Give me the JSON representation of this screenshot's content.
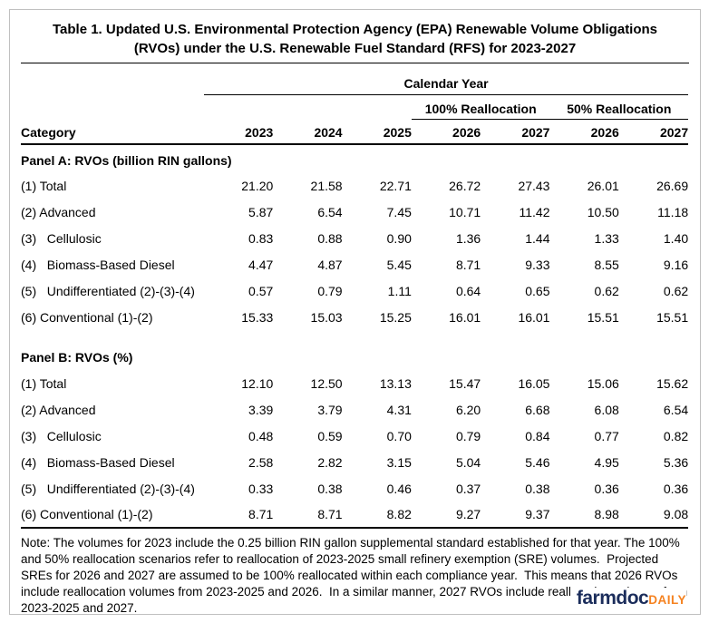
{
  "title": "Table 1. Updated U.S. Environmental Protection Agency (EPA) Renewable Volume Obligations (RVOs) under the U.S. Renewable Fuel Standard (RFS) for 2023-2027",
  "header": {
    "calendar_year": "Calendar Year",
    "realloc_100": "100% Reallocation",
    "realloc_50": "50% Reallocation",
    "category": "Category",
    "years": [
      "2023",
      "2024",
      "2025",
      "2026",
      "2027",
      "2026",
      "2027"
    ]
  },
  "panels": [
    {
      "title": "Panel A: RVOs (billion RIN gallons)",
      "rows": [
        {
          "label": "(1) Total",
          "values": [
            "21.20",
            "21.58",
            "22.71",
            "26.72",
            "27.43",
            "26.01",
            "26.69"
          ]
        },
        {
          "label": "(2) Advanced",
          "values": [
            "5.87",
            "6.54",
            "7.45",
            "10.71",
            "11.42",
            "10.50",
            "11.18"
          ]
        },
        {
          "label": "(3)   Cellulosic",
          "values": [
            "0.83",
            "0.88",
            "0.90",
            "1.36",
            "1.44",
            "1.33",
            "1.40"
          ]
        },
        {
          "label": "(4)   Biomass-Based Diesel",
          "values": [
            "4.47",
            "4.87",
            "5.45",
            "8.71",
            "9.33",
            "8.55",
            "9.16"
          ]
        },
        {
          "label": "(5)   Undifferentiated (2)-(3)-(4)",
          "values": [
            "0.57",
            "0.79",
            "1.11",
            "0.64",
            "0.65",
            "0.62",
            "0.62"
          ]
        },
        {
          "label": "(6) Conventional (1)-(2)",
          "values": [
            "15.33",
            "15.03",
            "15.25",
            "16.01",
            "16.01",
            "15.51",
            "15.51"
          ]
        }
      ]
    },
    {
      "title": "Panel B: RVOs (%)",
      "rows": [
        {
          "label": "(1) Total",
          "values": [
            "12.10",
            "12.50",
            "13.13",
            "15.47",
            "16.05",
            "15.06",
            "15.62"
          ]
        },
        {
          "label": "(2) Advanced",
          "values": [
            "3.39",
            "3.79",
            "4.31",
            "6.20",
            "6.68",
            "6.08",
            "6.54"
          ]
        },
        {
          "label": "(3)   Cellulosic",
          "values": [
            "0.48",
            "0.59",
            "0.70",
            "0.79",
            "0.84",
            "0.77",
            "0.82"
          ]
        },
        {
          "label": "(4)   Biomass-Based Diesel",
          "values": [
            "2.58",
            "2.82",
            "3.15",
            "5.04",
            "5.46",
            "4.95",
            "5.36"
          ]
        },
        {
          "label": "(5)   Undifferentiated (2)-(3)-(4)",
          "values": [
            "0.33",
            "0.38",
            "0.46",
            "0.37",
            "0.38",
            "0.36",
            "0.36"
          ]
        },
        {
          "label": "(6) Conventional (1)-(2)",
          "values": [
            "8.71",
            "8.71",
            "8.82",
            "9.27",
            "9.37",
            "8.98",
            "9.08"
          ]
        }
      ]
    }
  ],
  "note": "Note: The volumes for 2023 include the 0.25 billion RIN gallon supplemental standard established for that year. The 100% and 50% reallocation scenarios refer to reallocation of 2023-2025 small refinery exemption (SRE) volumes.  Projected SREs for 2026 and 2027 are assumed to be 100% reallocated within each compliance year.  This means that 2026 RVOs include reallocation volumes from 2023-2025 and 2026.  In a similar manner, 2027 RVOs include reallocation volumes from 2023-2025 and 2027.",
  "logo": {
    "farmdoc": "farmdoc",
    "daily": "DAILY"
  },
  "colors": {
    "text": "#000000",
    "frame_border": "#c0c0c0",
    "logo_navy": "#1b2d5b",
    "logo_orange": "#f58220"
  }
}
